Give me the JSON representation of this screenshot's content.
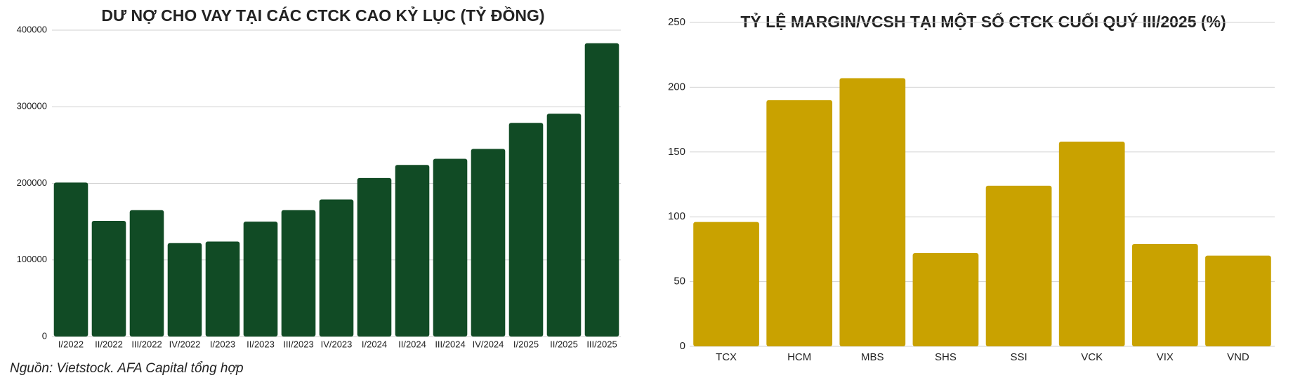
{
  "chart_data": [
    {
      "type": "bar",
      "title": "DƯ NỢ CHO VAY TẠI CÁC CTCK CAO KỶ LỤC (TỶ ĐỒNG)",
      "categories": [
        "I/2022",
        "II/2022",
        "III/2022",
        "IV/2022",
        "I/2023",
        "II/2023",
        "III/2023",
        "IV/2023",
        "I/2024",
        "II/2024",
        "III/2024",
        "IV/2024",
        "I/2025",
        "II/2025",
        "III/2025"
      ],
      "values": [
        201000,
        151000,
        165000,
        122000,
        124000,
        150000,
        165000,
        179000,
        207000,
        224000,
        232000,
        245000,
        279000,
        291000,
        383000
      ],
      "color": "#114b25",
      "ylim": [
        0,
        400000
      ],
      "yticks": [
        0,
        100000,
        200000,
        300000,
        400000
      ],
      "grid": true
    },
    {
      "type": "bar",
      "title": "TỶ LỆ MARGIN/VCSH TẠI MỘT SỐ CTCK CUỐI QUÝ III/2025 (%)",
      "categories": [
        "TCX",
        "HCM",
        "MBS",
        "SHS",
        "SSI",
        "VCK",
        "VIX",
        "VND"
      ],
      "values": [
        96,
        190,
        207,
        72,
        124,
        158,
        79,
        70
      ],
      "color": "#c9a200",
      "ylim": [
        0,
        250
      ],
      "yticks": [
        0,
        50,
        100,
        150,
        200,
        250
      ],
      "grid": true
    }
  ],
  "source": "Nguồn: Vietstock. AFA Capital tổng hợp"
}
